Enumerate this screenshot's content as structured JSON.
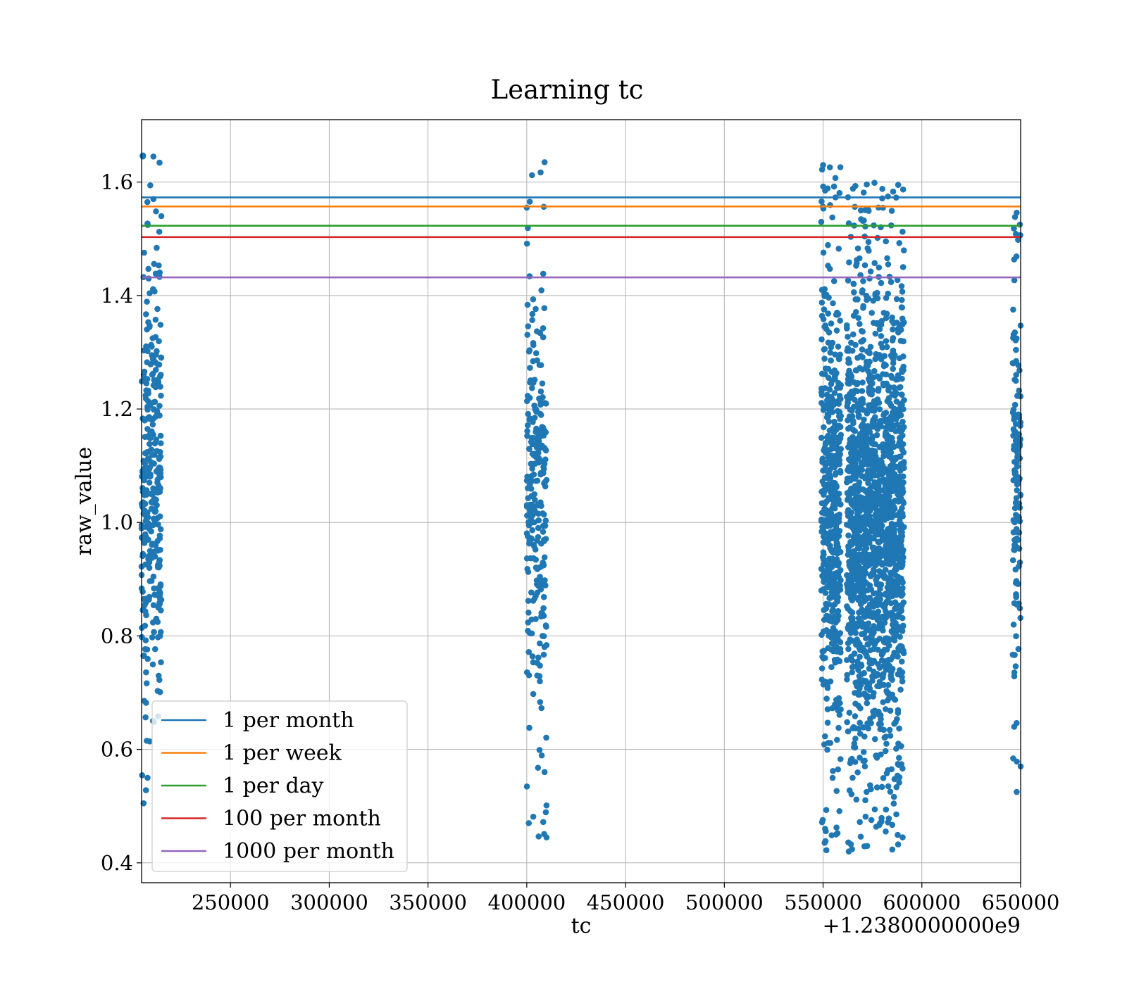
{
  "chart_data": {
    "type": "scatter",
    "title": "Learning tc",
    "xlabel": "tc",
    "ylabel": "raw_value",
    "x_offset_text": "+1.2380000000e9",
    "x_offset": 1238000000,
    "xlim": [
      205000,
      650000
    ],
    "ylim": [
      0.365,
      1.71
    ],
    "x_ticks": [
      250000,
      300000,
      350000,
      400000,
      450000,
      500000,
      550000,
      600000,
      650000
    ],
    "x_tick_labels": [
      "250000",
      "300000",
      "350000",
      "400000",
      "450000",
      "500000",
      "550000",
      "600000",
      "650000"
    ],
    "y_ticks": [
      0.4,
      0.6,
      0.8,
      1.0,
      1.2,
      1.4,
      1.6
    ],
    "y_tick_labels": [
      "0.4",
      "0.6",
      "0.8",
      "1.0",
      "1.2",
      "1.4",
      "1.6"
    ],
    "grid": true,
    "legend_position": "lower-left",
    "point_color": "#1f77b4",
    "scatter_clusters": [
      {
        "x_range": [
          205000,
          215000
        ],
        "y_range": [
          0.5,
          1.65
        ],
        "count": 320
      },
      {
        "x_range": [
          400000,
          410000
        ],
        "y_range": [
          0.44,
          1.64
        ],
        "count": 260
      },
      {
        "x_range": [
          549000,
          559000
        ],
        "y_range": [
          0.42,
          1.63
        ],
        "count": 500
      },
      {
        "x_range": [
          562000,
          591000
        ],
        "y_range": [
          0.42,
          1.6
        ],
        "count": 1700
      },
      {
        "x_range": [
          646000,
          650000
        ],
        "y_range": [
          0.52,
          1.55
        ],
        "count": 140
      }
    ],
    "sample_points": [
      {
        "x": 211000,
        "y": 1.645
      },
      {
        "x": 211000,
        "y": 1.57
      },
      {
        "x": 208000,
        "y": 1.527
      },
      {
        "x": 215000,
        "y": 1.54
      },
      {
        "x": 206000,
        "y": 0.505
      },
      {
        "x": 208000,
        "y": 0.55
      },
      {
        "x": 409000,
        "y": 1.635
      },
      {
        "x": 407000,
        "y": 1.617
      },
      {
        "x": 401000,
        "y": 0.47
      },
      {
        "x": 410000,
        "y": 0.445
      },
      {
        "x": 400000,
        "y": 1.555
      },
      {
        "x": 409000,
        "y": 0.56
      },
      {
        "x": 550000,
        "y": 1.63
      },
      {
        "x": 551000,
        "y": 1.585
      },
      {
        "x": 551000,
        "y": 0.46
      },
      {
        "x": 563000,
        "y": 0.42
      },
      {
        "x": 585000,
        "y": 0.467
      },
      {
        "x": 588000,
        "y": 1.595
      },
      {
        "x": 580000,
        "y": 1.588
      },
      {
        "x": 572000,
        "y": 0.525
      },
      {
        "x": 648000,
        "y": 1.546
      },
      {
        "x": 648000,
        "y": 0.525
      },
      {
        "x": 650000,
        "y": 0.57
      },
      {
        "x": 583000,
        "y": 0.535
      }
    ],
    "series": [
      {
        "name": "1 per month",
        "kind": "hline",
        "y": 1.573,
        "color": "#1f77b4"
      },
      {
        "name": "1 per week",
        "kind": "hline",
        "y": 1.557,
        "color": "#ff7f0e"
      },
      {
        "name": "1 per day",
        "kind": "hline",
        "y": 1.523,
        "color": "#2ca02c"
      },
      {
        "name": "100 per month",
        "kind": "hline",
        "y": 1.503,
        "color": "#d62728"
      },
      {
        "name": "1000 per month",
        "kind": "hline",
        "y": 1.432,
        "color": "#9467bd"
      }
    ]
  }
}
